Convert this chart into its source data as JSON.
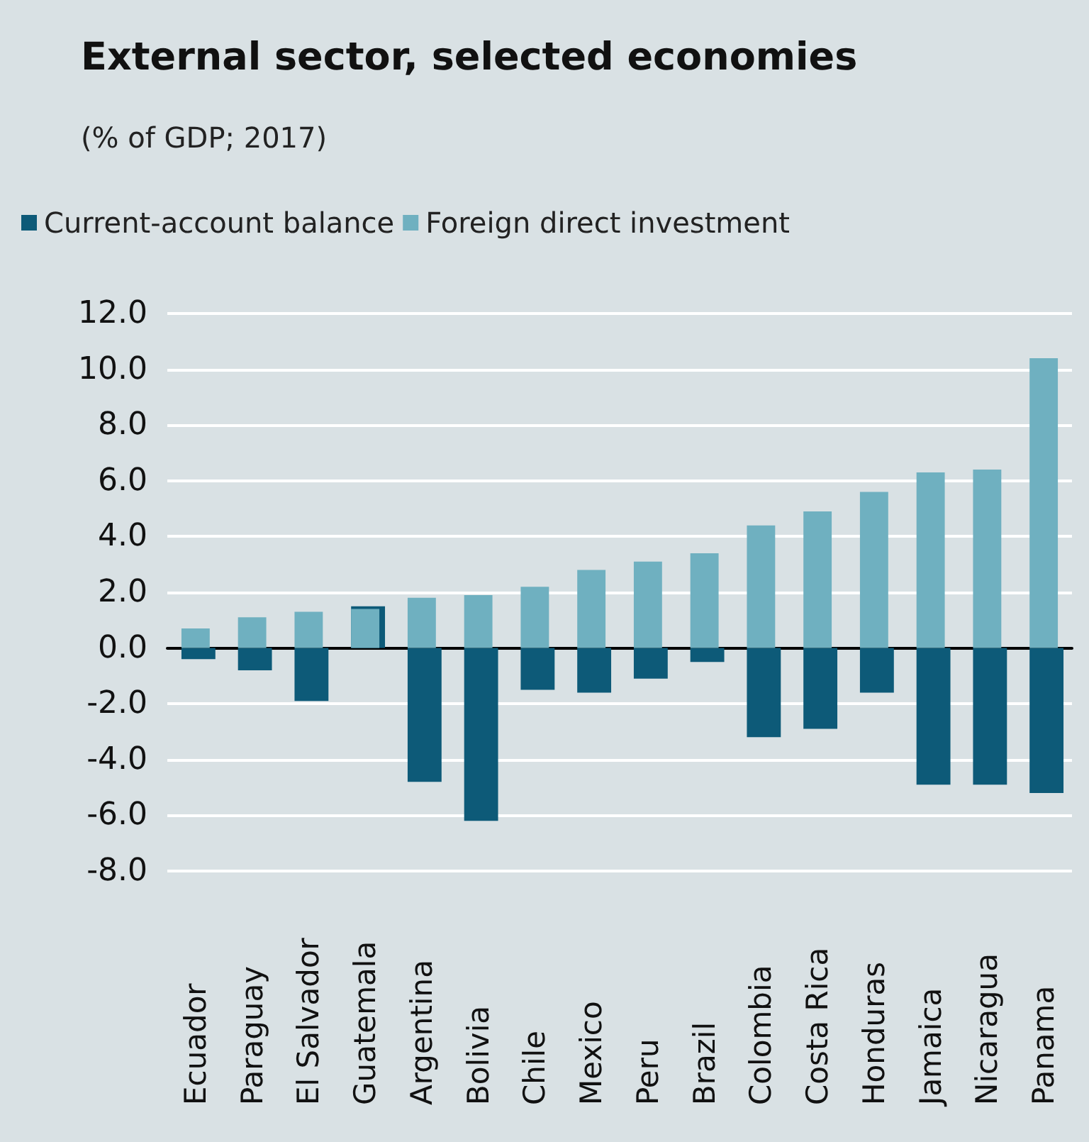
{
  "chart_data": {
    "type": "bar",
    "title": "External sector, selected economies",
    "subtitle": "(% of GDP; 2017)",
    "categories": [
      "Ecuador",
      "Paraguay",
      "El Salvador",
      "Guatemala",
      "Argentina",
      "Bolivia",
      "Chile",
      "Mexico",
      "Peru",
      "Brazil",
      "Colombia",
      "Costa Rica",
      "Honduras",
      "Jamaica",
      "Nicaragua",
      "Panama"
    ],
    "series": [
      {
        "name": "Current-account balance",
        "color": "#0d5a78",
        "values": [
          -0.4,
          -0.8,
          -1.9,
          1.5,
          -4.8,
          -6.2,
          -1.5,
          -1.6,
          -1.1,
          -0.5,
          -3.2,
          -2.9,
          -1.6,
          -4.9,
          -4.9,
          -5.2
        ]
      },
      {
        "name": "Foreign direct investment",
        "color": "#6fb0c0",
        "values": [
          0.7,
          1.1,
          1.3,
          1.4,
          1.8,
          1.9,
          2.2,
          2.8,
          3.1,
          3.4,
          4.4,
          4.9,
          5.6,
          6.3,
          6.4,
          10.4
        ]
      }
    ],
    "ylim": [
      -8,
      12
    ],
    "yticks": [
      {
        "value": -8,
        "label": "-8.0"
      },
      {
        "value": -6,
        "label": "-6.0"
      },
      {
        "value": -4,
        "label": "-4.0"
      },
      {
        "value": -2,
        "label": "-2.0"
      },
      {
        "value": 0,
        "label": "0.0"
      },
      {
        "value": 2,
        "label": "2.0"
      },
      {
        "value": 4,
        "label": "4.0"
      },
      {
        "value": 6,
        "label": "6.0"
      },
      {
        "value": 8,
        "label": "8.0"
      },
      {
        "value": 10,
        "label": "10.0"
      },
      {
        "value": 12,
        "label": "12.0"
      }
    ],
    "grid": "y",
    "legend": "top left"
  }
}
